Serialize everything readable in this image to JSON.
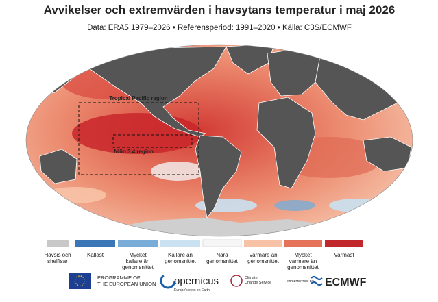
{
  "header": {
    "title": "Avvikelser och extremvärden i havsytans temperatur i maj 2026",
    "subtitle": "Data: ERA5 1979–2026 • Referensperiod: 1991–2020 • Källa: C3S/ECMWF"
  },
  "map": {
    "regions": [
      {
        "label": "Tropical Pacific region"
      },
      {
        "label": "Niño 3.4 region"
      }
    ]
  },
  "legend": [
    {
      "label": [
        "Havsis och",
        "shelfisar"
      ],
      "color": "#c8c8c8"
    },
    {
      "label": [
        "Kallast"
      ],
      "color": "#3b77b6"
    },
    {
      "label": [
        "Mycket",
        "kallare än",
        "genomsnittet"
      ],
      "color": "#79acd6"
    },
    {
      "label": [
        "Kallare än",
        "genomsnittet"
      ],
      "color": "#c9e1f1"
    },
    {
      "label": [
        "Nära",
        "genomsnittet"
      ],
      "color": "#f6f6f6"
    },
    {
      "label": [
        "Varmare än",
        "genomsnittet"
      ],
      "color": "#f7c2a6"
    },
    {
      "label": [
        "Mycket",
        "varmare än",
        "genomsnittet"
      ],
      "color": "#e5735a"
    },
    {
      "label": [
        "Varmast"
      ],
      "color": "#c0282b"
    }
  ],
  "footer": {
    "eu": [
      "PROGRAMME OF",
      "THE EUROPEAN UNION"
    ],
    "copernicus": "opernicus",
    "copernicus_tagline": "Europe's eyes on Earth",
    "c3s": [
      "Climate",
      "Change Service"
    ],
    "implemented": "IMPLEMENTED BY",
    "ecmwf": "ECMWF"
  }
}
